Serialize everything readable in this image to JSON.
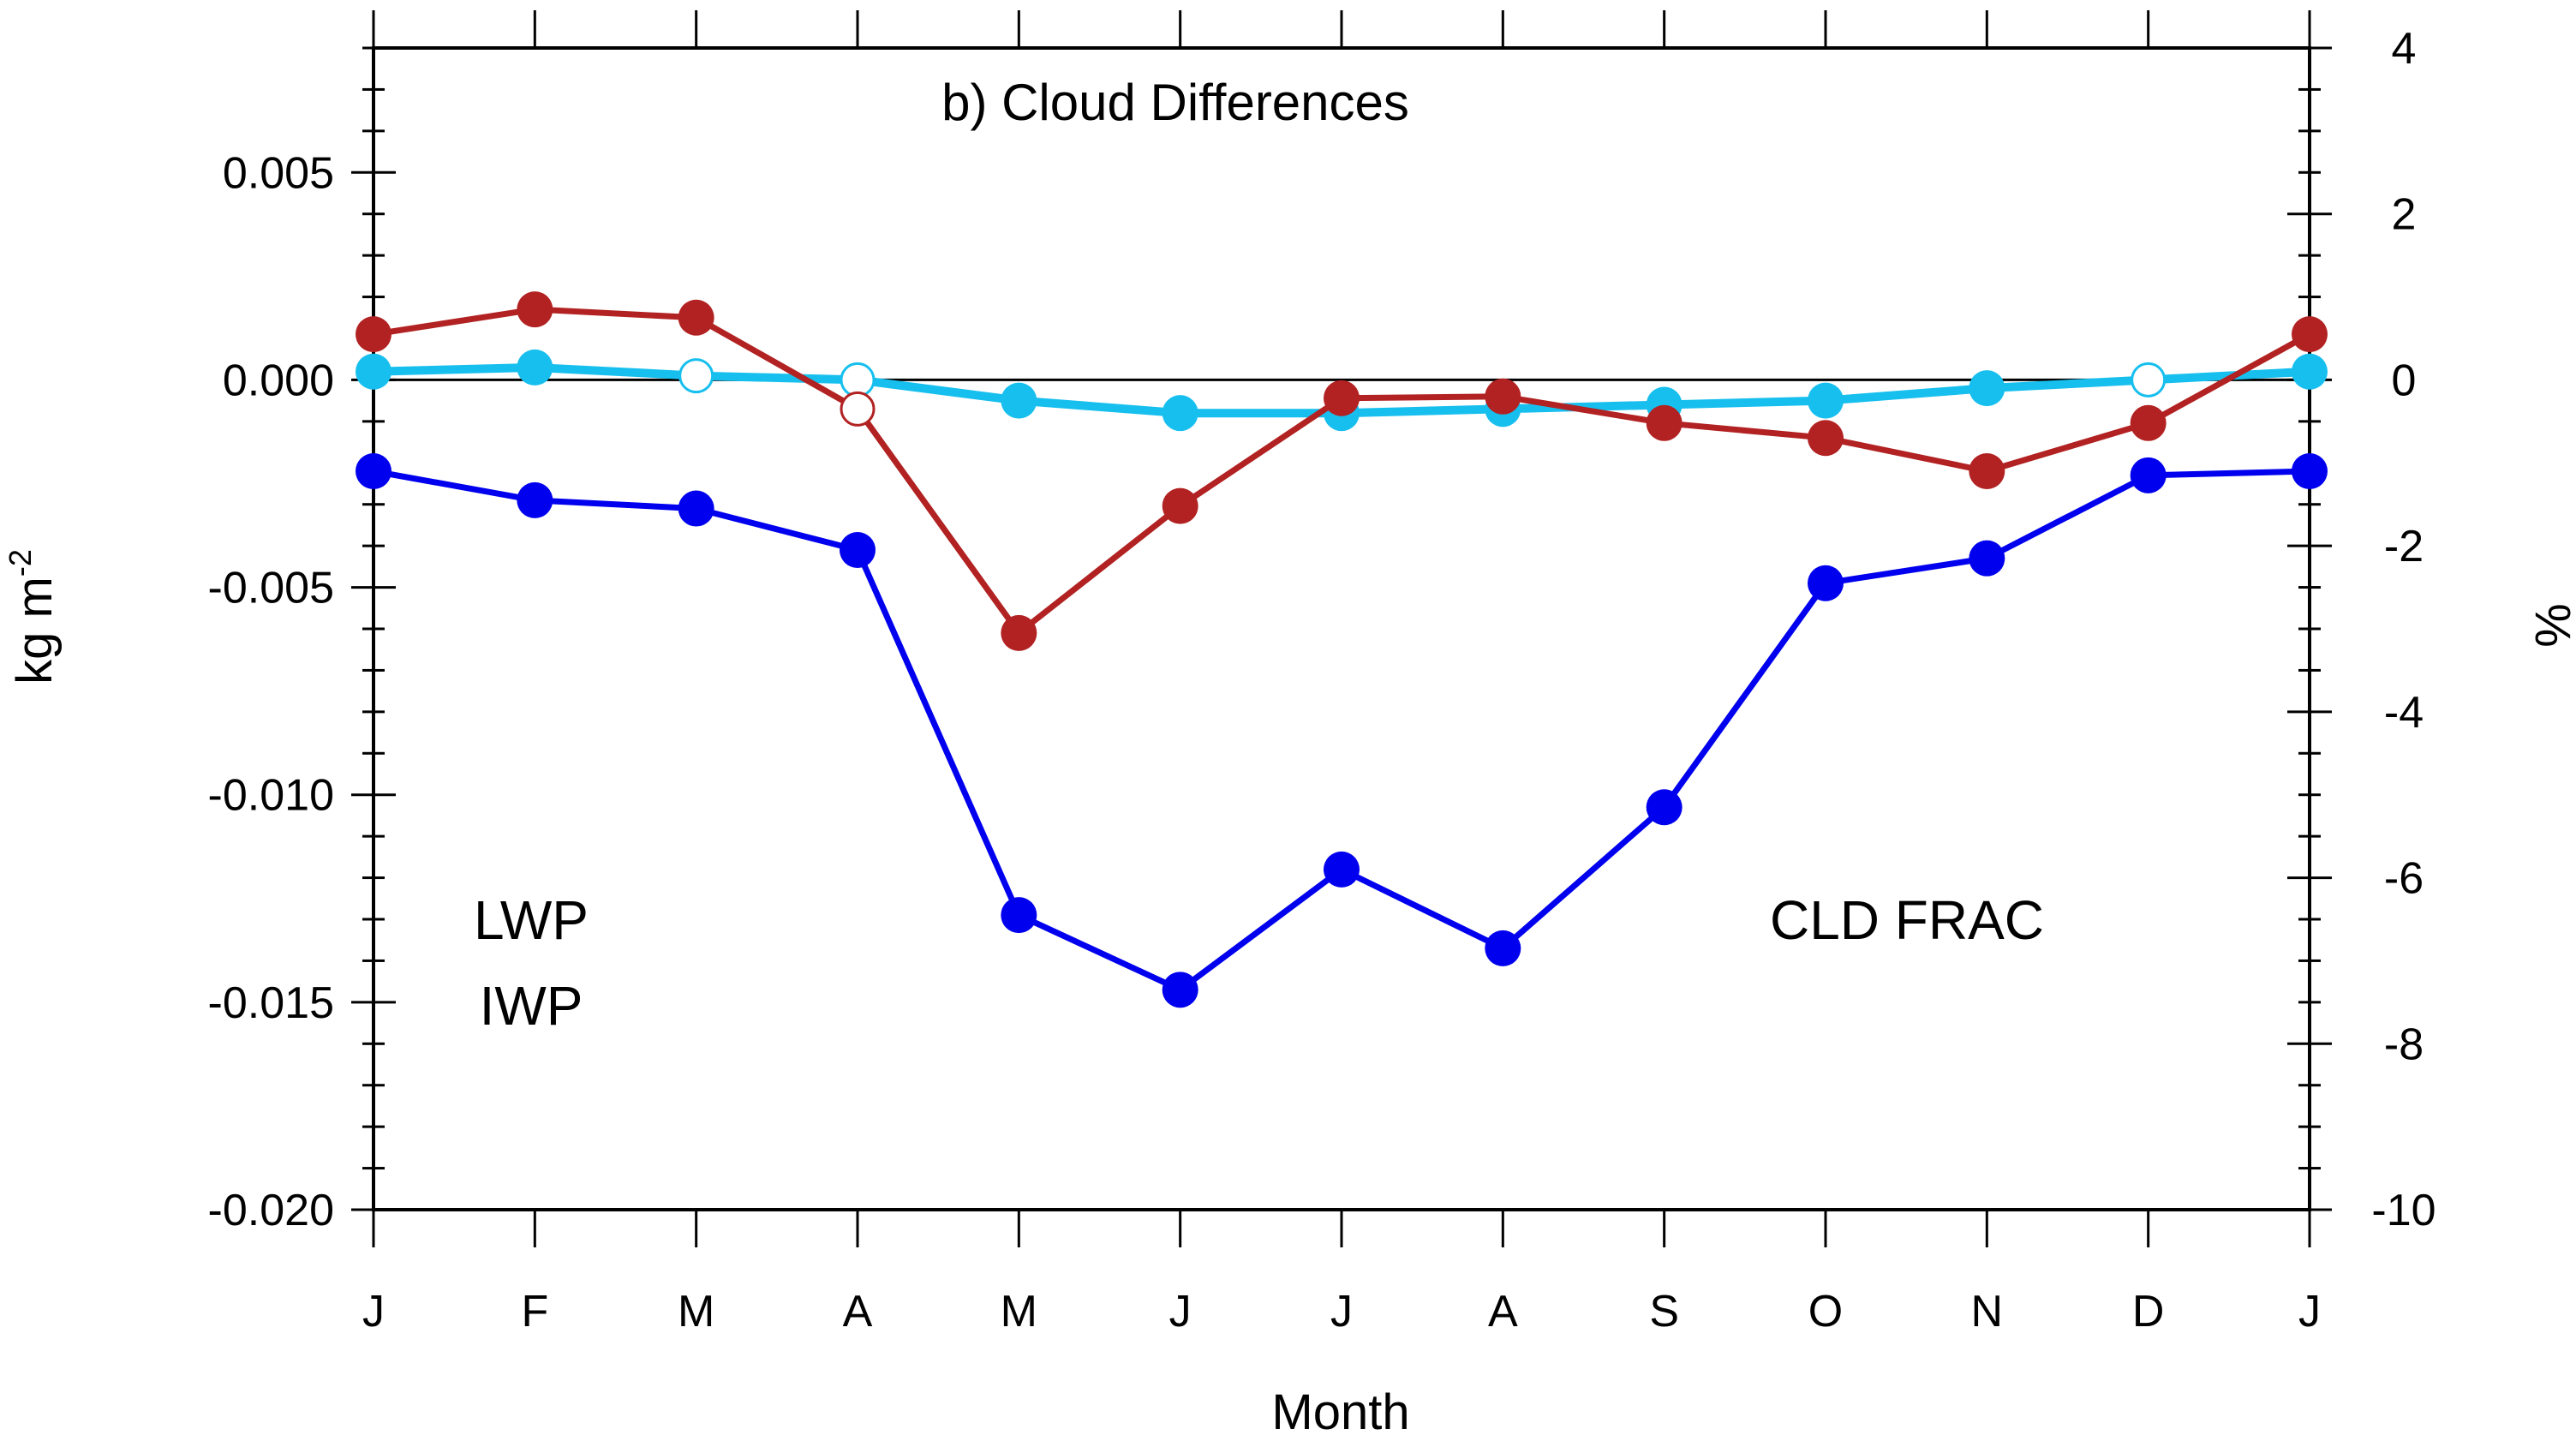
{
  "chart_data": {
    "type": "line",
    "title": "b) Cloud Differences",
    "xlabel": "Month",
    "ylabel_left": "kg m",
    "ylabel_left_superscript": "-2",
    "ylabel_right": "%",
    "categories": [
      "J",
      "F",
      "M",
      "A",
      "M",
      "J",
      "J",
      "A",
      "S",
      "O",
      "N",
      "D",
      "J"
    ],
    "ylim_left": [
      -0.02,
      0.008
    ],
    "ylim_right": [
      -10,
      4
    ],
    "yticks_left": [
      "0.005",
      "0.000",
      "-0.005",
      "-0.010",
      "-0.015",
      "-0.020"
    ],
    "yticks_right": [
      "4",
      "2",
      "0",
      "-2",
      "-4",
      "-6",
      "-8",
      "-10"
    ],
    "zero_line": true,
    "grid": false,
    "series": [
      {
        "name": "LWP",
        "axis": "left",
        "color": "#0000ee",
        "values": [
          -0.0022,
          -0.0029,
          -0.0031,
          -0.0041,
          -0.0129,
          -0.0147,
          -0.0118,
          -0.0137,
          -0.0103,
          -0.0049,
          -0.0043,
          -0.0023,
          -0.0022
        ],
        "significant": [
          true,
          true,
          true,
          true,
          true,
          true,
          true,
          true,
          true,
          true,
          true,
          true,
          true
        ]
      },
      {
        "name": "IWP",
        "axis": "left",
        "color": "#17bfee",
        "values": [
          0.0002,
          0.0003,
          0.0001,
          0.0,
          -0.0005,
          -0.0008,
          -0.0008,
          -0.0007,
          -0.0006,
          -0.0005,
          -0.0002,
          0.0,
          0.0002
        ],
        "significant": [
          true,
          true,
          false,
          false,
          true,
          true,
          true,
          true,
          true,
          true,
          true,
          false,
          true
        ]
      },
      {
        "name": "CLD FRAC",
        "axis": "right",
        "color": "#b22222",
        "values": [
          0.55,
          0.85,
          0.75,
          -0.35,
          -3.05,
          -1.52,
          -0.22,
          -0.2,
          -0.52,
          -0.7,
          -1.1,
          -0.52,
          0.55
        ],
        "significant": [
          true,
          true,
          true,
          false,
          true,
          true,
          true,
          true,
          true,
          true,
          true,
          true,
          true
        ]
      }
    ]
  }
}
